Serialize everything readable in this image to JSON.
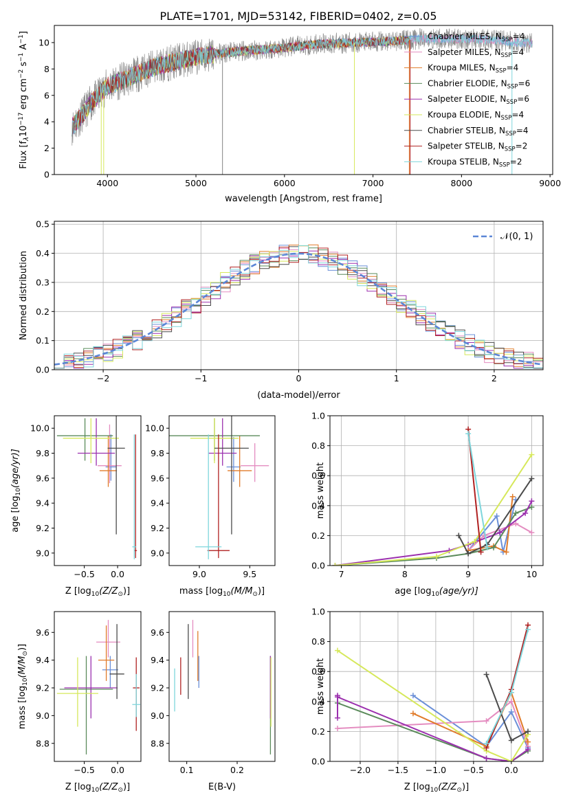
{
  "figure": {
    "title": "PLATE=1701, MJD=53142, FIBERID=0402, z=0.05"
  },
  "colors": {
    "chabrier_miles": "#6a8fd8",
    "salpeter_miles": "#e48cc0",
    "kroupa_miles": "#e07b2a",
    "chabrier_elodie": "#5a8a5a",
    "salpeter_elodie": "#9b2fae",
    "kroupa_elodie": "#d6e85a",
    "chabrier_stelib": "#4a4a4a",
    "salpeter_stelib": "#b02020",
    "kroupa_stelib": "#7ed6dc",
    "data": "#808080",
    "normal": "#5b86d6"
  },
  "chart_data": [
    {
      "id": "spectrum",
      "type": "line",
      "xlabel": "wavelength [Angstrom, rest frame]",
      "ylabel_prefix": "Flux [f",
      "ylabel_mid": "10",
      "ylabel_exp1": "−17",
      "ylabel_mid2": " erg cm",
      "ylabel_exp2": "−2",
      "ylabel_mid3": " s",
      "ylabel_exp3": "−1",
      "ylabel_mid4": " A",
      "ylabel_exp4": "−1",
      "ylabel_suffix": "]",
      "xlim": [
        3400,
        9030
      ],
      "ylim": [
        0,
        11.3
      ],
      "xticks": [
        4000,
        5000,
        6000,
        7000,
        8000,
        9000
      ],
      "yticks": [
        0,
        2,
        4,
        6,
        8,
        10
      ],
      "continuum_x": [
        3600,
        3700,
        3800,
        3900,
        4000,
        4200,
        4400,
        4600,
        4800,
        5000,
        5300,
        5600,
        6000,
        6400,
        6800,
        7200,
        7600,
        8000,
        8400,
        8800
      ],
      "continuum_y": [
        3.6,
        4.4,
        5.3,
        6.0,
        6.7,
        7.2,
        7.8,
        8.3,
        8.6,
        8.9,
        9.2,
        9.4,
        9.6,
        9.9,
        10.0,
        10.1,
        10.3,
        10.3,
        10.2,
        9.9
      ],
      "legend": [
        {
          "label": "Chabrier MILES, N",
          "sub": "SSP",
          "tail": "=4",
          "color_key": "chabrier_miles"
        },
        {
          "label": "Salpeter MILES, N",
          "sub": "SSP",
          "tail": "=4",
          "color_key": "salpeter_miles"
        },
        {
          "label": "Kroupa MILES, N",
          "sub": "SSP",
          "tail": "=4",
          "color_key": "kroupa_miles"
        },
        {
          "label": "Chabrier ELODIE, N",
          "sub": "SSP",
          "tail": "=6",
          "color_key": "chabrier_elodie"
        },
        {
          "label": "Salpeter ELODIE, N",
          "sub": "SSP",
          "tail": "=6",
          "color_key": "salpeter_elodie"
        },
        {
          "label": "Kroupa ELODIE, N",
          "sub": "SSP",
          "tail": "=4",
          "color_key": "kroupa_elodie"
        },
        {
          "label": "Chabrier STELIB, N",
          "sub": "SSP",
          "tail": "=4",
          "color_key": "chabrier_stelib"
        },
        {
          "label": "Salpeter STELIB, N",
          "sub": "SSP",
          "tail": "=2",
          "color_key": "salpeter_stelib"
        },
        {
          "label": "Kroupa STELIB, N",
          "sub": "SSP",
          "tail": "=2",
          "color_key": "kroupa_stelib"
        }
      ],
      "legend_position": "upper right"
    },
    {
      "id": "residuals",
      "type": "histogram",
      "xlabel": "(data-model)/error",
      "ylabel": "Normed distribution",
      "xlim": [
        -2.5,
        2.5
      ],
      "ylim": [
        0,
        0.51
      ],
      "xticks": [
        -2,
        -1,
        0,
        1,
        2
      ],
      "xtick_labels": [
        "−2",
        "−1",
        "0",
        "1",
        "2"
      ],
      "yticks": [
        0.0,
        0.1,
        0.2,
        0.3,
        0.4,
        0.5
      ],
      "ytick_labels": [
        "0.0",
        "0.1",
        "0.2",
        "0.3",
        "0.4",
        "0.5"
      ],
      "grid": true,
      "bin_width": 0.1,
      "legend": [
        {
          "label": "𝒩(0, 1)",
          "style": "dashed",
          "color_key": "normal"
        }
      ],
      "legend_position": "upper right"
    },
    {
      "id": "age_vs_z",
      "type": "errorbar",
      "xlabel": "Z [log",
      "xlabel_sub": "10",
      "xlabel_tail": "(Z/Z",
      "xlabel_sun": "⊙",
      "xlabel_end": ")]",
      "ylabel": "age  [log",
      "ylabel_sub": "10",
      "ylabel_tail": "(age/yr)]",
      "xlim": [
        -0.95,
        0.35
      ],
      "ylim": [
        8.9,
        10.1
      ],
      "xticks": [
        -0.5,
        0.0
      ],
      "xtick_labels": [
        "−0.5",
        "0.0"
      ],
      "yticks": [
        9.0,
        9.2,
        9.4,
        9.6,
        9.8,
        10.0
      ],
      "ytick_labels": [
        "9.0",
        "9.2",
        "9.4",
        "9.6",
        "9.8",
        "10.0"
      ],
      "points": [
        {
          "x": -0.1,
          "xerr": 0.08,
          "y": 9.69,
          "yerr_lo": 0.11,
          "yerr_hi": 0.26,
          "color_key": "chabrier_miles"
        },
        {
          "x": -0.12,
          "xerr": 0.18,
          "y": 9.7,
          "yerr_lo": 0.14,
          "yerr_hi": 0.33,
          "color_key": "salpeter_miles"
        },
        {
          "x": -0.14,
          "xerr": 0.13,
          "y": 9.66,
          "yerr_lo": 0.13,
          "yerr_hi": 0.28,
          "color_key": "kroupa_miles"
        },
        {
          "x": -0.49,
          "xerr": 0.42,
          "y": 9.94,
          "yerr_lo": 0.2,
          "yerr_hi": 0.14,
          "color_key": "chabrier_elodie"
        },
        {
          "x": -0.32,
          "xerr": 0.28,
          "y": 9.8,
          "yerr_lo": 0.1,
          "yerr_hi": 0.28,
          "color_key": "salpeter_elodie"
        },
        {
          "x": -0.4,
          "xerr": 0.42,
          "y": 9.92,
          "yerr_lo": 0.2,
          "yerr_hi": 0.16,
          "color_key": "kroupa_elodie"
        },
        {
          "x": -0.02,
          "xerr": 0.13,
          "y": 9.84,
          "yerr_lo": 0.69,
          "yerr_hi": 0.26,
          "color_key": "chabrier_stelib"
        },
        {
          "x": 0.27,
          "xerr": 0.02,
          "y": 9.02,
          "yerr_lo": 0.06,
          "yerr_hi": 0.93,
          "color_key": "salpeter_stelib"
        },
        {
          "x": 0.25,
          "xerr": 0.03,
          "y": 9.05,
          "yerr_lo": 0.1,
          "yerr_hi": 0.9,
          "color_key": "kroupa_stelib"
        }
      ]
    },
    {
      "id": "age_vs_mass",
      "type": "errorbar",
      "xlabel": "mass [log",
      "xlabel_sub": "10",
      "xlabel_tail": "(M/M",
      "xlabel_sun": "⊙",
      "xlabel_end": ")]",
      "xlim": [
        8.7,
        9.75
      ],
      "ylim": [
        8.9,
        10.1
      ],
      "xticks": [
        9.0,
        9.5
      ],
      "xtick_labels": [
        "9.0",
        "9.5"
      ],
      "yticks": [
        9.0,
        9.2,
        9.4,
        9.6,
        9.8,
        10.0
      ],
      "ytick_labels": [
        "9.0",
        "9.2",
        "9.4",
        "9.6",
        "9.8",
        "10.0"
      ],
      "points": [
        {
          "x": 9.34,
          "xerr": 0.07,
          "y": 9.69,
          "yerr_lo": 0.12,
          "yerr_hi": 0.24,
          "color_key": "chabrier_miles"
        },
        {
          "x": 9.55,
          "xerr": 0.14,
          "y": 9.7,
          "yerr_lo": 0.13,
          "yerr_hi": 0.18,
          "color_key": "salpeter_miles"
        },
        {
          "x": 9.4,
          "xerr": 0.12,
          "y": 9.66,
          "yerr_lo": 0.13,
          "yerr_hi": 0.28,
          "color_key": "kroupa_miles"
        },
        {
          "x": 9.15,
          "xerr": 0.45,
          "y": 9.94,
          "yerr_lo": 0.2,
          "yerr_hi": 0.14,
          "color_key": "chabrier_elodie"
        },
        {
          "x": 9.23,
          "xerr": 0.14,
          "y": 9.8,
          "yerr_lo": 0.1,
          "yerr_hi": 0.28,
          "color_key": "salpeter_elodie"
        },
        {
          "x": 9.15,
          "xerr": 0.24,
          "y": 9.92,
          "yerr_lo": 0.2,
          "yerr_hi": 0.16,
          "color_key": "kroupa_elodie"
        },
        {
          "x": 9.32,
          "xerr": 0.17,
          "y": 9.84,
          "yerr_lo": 0.69,
          "yerr_hi": 0.26,
          "color_key": "chabrier_stelib"
        },
        {
          "x": 9.19,
          "xerr": 0.11,
          "y": 9.02,
          "yerr_lo": 0.06,
          "yerr_hi": 0.93,
          "color_key": "salpeter_stelib"
        },
        {
          "x": 9.09,
          "xerr": 0.13,
          "y": 9.05,
          "yerr_lo": 0.1,
          "yerr_hi": 0.9,
          "color_key": "kroupa_stelib"
        }
      ]
    },
    {
      "id": "weight_vs_age",
      "type": "line",
      "xlabel": "age  [log",
      "xlabel_sub": "10",
      "xlabel_tail": "(age/yr)]",
      "ylabel": "mass weight",
      "xlim": [
        6.82,
        10.18
      ],
      "ylim": [
        0,
        1.0
      ],
      "xticks": [
        7,
        8,
        9,
        10
      ],
      "xtick_labels": [
        "7",
        "8",
        "9",
        "10"
      ],
      "yticks": [
        0.0,
        0.2,
        0.4,
        0.6,
        0.8,
        1.0
      ],
      "ytick_labels": [
        "0.0",
        "0.2",
        "0.4",
        "0.6",
        "0.8",
        "1.0"
      ],
      "grid": true,
      "series": [
        {
          "color_key": "chabrier_miles",
          "x": [
            9.0,
            9.45,
            9.55,
            9.75
          ],
          "y": [
            0.1,
            0.33,
            0.09,
            0.44
          ]
        },
        {
          "color_key": "salpeter_miles",
          "x": [
            9.0,
            9.25,
            9.75,
            10.0
          ],
          "y": [
            0.1,
            0.2,
            0.28,
            0.22
          ]
        },
        {
          "color_key": "kroupa_miles",
          "x": [
            9.0,
            9.4,
            9.6,
            9.7
          ],
          "y": [
            0.1,
            0.13,
            0.09,
            0.46
          ]
        },
        {
          "color_key": "chabrier_elodie",
          "x": [
            6.9,
            8.5,
            9.0,
            9.4,
            9.75,
            10.0
          ],
          "y": [
            0.0,
            0.05,
            0.08,
            0.12,
            0.35,
            0.39
          ]
        },
        {
          "color_key": "salpeter_elodie",
          "x": [
            6.9,
            8.7,
            9.0,
            9.5,
            9.9,
            10.0
          ],
          "y": [
            0.0,
            0.1,
            0.14,
            0.22,
            0.35,
            0.43
          ]
        },
        {
          "color_key": "kroupa_elodie",
          "x": [
            6.9,
            8.5,
            9.1,
            10.0
          ],
          "y": [
            0.0,
            0.06,
            0.16,
            0.74
          ]
        },
        {
          "color_key": "chabrier_stelib",
          "x": [
            8.85,
            9.0,
            9.3,
            10.0
          ],
          "y": [
            0.2,
            0.08,
            0.14,
            0.58
          ]
        },
        {
          "color_key": "salpeter_stelib",
          "x": [
            9.0,
            9.2
          ],
          "y": [
            0.91,
            0.09
          ]
        },
        {
          "color_key": "kroupa_stelib",
          "x": [
            9.0,
            9.3
          ],
          "y": [
            0.88,
            0.12
          ]
        }
      ]
    },
    {
      "id": "mass_vs_z",
      "type": "errorbar",
      "xlabel": "Z [log",
      "xlabel_sub": "10",
      "xlabel_tail": "(Z/Z",
      "xlabel_sun": "⊙",
      "xlabel_end": ")]",
      "ylabel": "mass [log",
      "ylabel_sub": "10",
      "ylabel_tail": "(M/M",
      "ylabel_sun": "⊙",
      "ylabel_end": ")]",
      "xlim": [
        -0.95,
        0.35
      ],
      "ylim": [
        8.67,
        9.75
      ],
      "xticks": [
        -0.5,
        0.0
      ],
      "xtick_labels": [
        "−0.5",
        "0.0"
      ],
      "yticks": [
        8.8,
        9.0,
        9.2,
        9.4,
        9.6
      ],
      "ytick_labels": [
        "8.8",
        "9.0",
        "9.2",
        "9.4",
        "9.6"
      ],
      "points": [
        {
          "x": -0.11,
          "xerr": 0.12,
          "y": 9.33,
          "yerr_lo": 0.13,
          "yerr_hi": 0.1,
          "color_key": "chabrier_miles"
        },
        {
          "x": -0.14,
          "xerr": 0.18,
          "y": 9.53,
          "yerr_lo": 0.11,
          "yerr_hi": 0.16,
          "color_key": "salpeter_miles"
        },
        {
          "x": -0.17,
          "xerr": 0.12,
          "y": 9.4,
          "yerr_lo": 0.15,
          "yerr_hi": 0.25,
          "color_key": "kroupa_miles"
        },
        {
          "x": -0.47,
          "xerr": 0.4,
          "y": 9.19,
          "yerr_lo": 0.47,
          "yerr_hi": 0.24,
          "color_key": "chabrier_elodie"
        },
        {
          "x": -0.4,
          "xerr": 0.4,
          "y": 9.2,
          "yerr_lo": 0.22,
          "yerr_hi": 0.23,
          "color_key": "salpeter_elodie"
        },
        {
          "x": -0.6,
          "xerr": 0.31,
          "y": 9.16,
          "yerr_lo": 0.24,
          "yerr_hi": 0.26,
          "color_key": "kroupa_elodie"
        },
        {
          "x": -0.01,
          "xerr": 0.11,
          "y": 9.3,
          "yerr_lo": 0.18,
          "yerr_hi": 0.36,
          "color_key": "chabrier_stelib"
        },
        {
          "x": 0.28,
          "xerr": 0.05,
          "y": 9.2,
          "yerr_lo": 0.31,
          "yerr_hi": 0.22,
          "color_key": "salpeter_stelib"
        },
        {
          "x": 0.28,
          "xerr": 0.06,
          "y": 9.08,
          "yerr_lo": 0.09,
          "yerr_hi": 0.22,
          "color_key": "kroupa_stelib"
        }
      ]
    },
    {
      "id": "mass_vs_ebv",
      "type": "errorbar",
      "xlabel": "E(B-V)",
      "xlim": [
        0.065,
        0.275
      ],
      "ylim": [
        8.67,
        9.75
      ],
      "xticks": [
        0.1,
        0.2
      ],
      "xtick_labels": [
        "0.1",
        "0.2"
      ],
      "yticks": [
        8.8,
        9.0,
        9.2,
        9.4,
        9.6
      ],
      "ytick_labels": [
        "8.8",
        "9.0",
        "9.2",
        "9.4",
        "9.6"
      ],
      "points": [
        {
          "x": 0.124,
          "y": 9.33,
          "yerr_lo": 0.13,
          "yerr_hi": 0.1,
          "color_key": "chabrier_miles"
        },
        {
          "x": 0.112,
          "y": 9.53,
          "yerr_lo": 0.11,
          "yerr_hi": 0.16,
          "color_key": "salpeter_miles"
        },
        {
          "x": 0.122,
          "y": 9.4,
          "yerr_lo": 0.15,
          "yerr_hi": 0.21,
          "color_key": "kroupa_miles"
        },
        {
          "x": 0.266,
          "y": 9.19,
          "yerr_lo": 0.47,
          "yerr_hi": 0.24,
          "color_key": "chabrier_elodie"
        },
        {
          "x": 0.266,
          "y": 9.2,
          "yerr_lo": 0.22,
          "yerr_hi": 0.23,
          "color_key": "salpeter_elodie"
        },
        {
          "x": 0.267,
          "y": 9.16,
          "yerr_lo": 0.24,
          "yerr_hi": 0.26,
          "color_key": "kroupa_elodie"
        },
        {
          "x": 0.103,
          "y": 9.3,
          "yerr_lo": 0.18,
          "yerr_hi": 0.36,
          "color_key": "chabrier_stelib"
        },
        {
          "x": 0.088,
          "y": 9.2,
          "yerr_lo": 0.05,
          "yerr_hi": 0.22,
          "color_key": "salpeter_stelib"
        },
        {
          "x": 0.076,
          "y": 9.08,
          "yerr_lo": 0.05,
          "yerr_hi": 0.26,
          "color_key": "kroupa_stelib"
        }
      ]
    },
    {
      "id": "weight_vs_z",
      "type": "line",
      "xlabel": "Z [log",
      "xlabel_sub": "10",
      "xlabel_tail": "(Z/Z",
      "xlabel_sun": "⊙",
      "xlabel_end": ")]",
      "ylabel": "mass weight",
      "xlim": [
        -2.4,
        0.42
      ],
      "ylim": [
        0,
        1.0
      ],
      "xticks": [
        -2.0,
        -1.5,
        -1.0,
        -0.5,
        0.0
      ],
      "xtick_labels": [
        "−2.0",
        "−1.5",
        "−1.0",
        "−0.5",
        "0.0"
      ],
      "yticks": [
        0.0,
        0.2,
        0.4,
        0.6,
        0.8,
        1.0
      ],
      "ytick_labels": [
        "0.0",
        "0.2",
        "0.4",
        "0.6",
        "0.8",
        "1.0"
      ],
      "grid": true,
      "series": [
        {
          "color_key": "chabrier_miles",
          "x": [
            -1.3,
            -0.33,
            0.0,
            0.22
          ],
          "y": [
            0.44,
            0.1,
            0.33,
            0.09
          ]
        },
        {
          "color_key": "salpeter_miles",
          "x": [
            -2.3,
            -0.33,
            0.0,
            0.22
          ],
          "y": [
            0.22,
            0.27,
            0.4,
            0.1
          ]
        },
        {
          "color_key": "kroupa_miles",
          "x": [
            -1.3,
            -0.33,
            0.0,
            0.22
          ],
          "y": [
            0.32,
            0.1,
            0.46,
            0.13
          ]
        },
        {
          "color_key": "chabrier_elodie",
          "x": [
            -2.3,
            -0.33,
            0.0,
            0.22
          ],
          "y": [
            0.39,
            0.02,
            0.0,
            0.07
          ]
        },
        {
          "color_key": "salpeter_elodie",
          "x": [
            -2.3,
            -2.3,
            -2.3,
            -0.33,
            0.0,
            0.22
          ],
          "y": [
            0.29,
            0.44,
            0.43,
            0.02,
            0.0,
            0.08
          ]
        },
        {
          "color_key": "kroupa_elodie",
          "x": [
            -2.3,
            -0.33,
            0.0,
            0.22
          ],
          "y": [
            0.74,
            0.07,
            0.0,
            0.18
          ]
        },
        {
          "color_key": "chabrier_stelib",
          "x": [
            -0.33,
            0.0,
            0.22
          ],
          "y": [
            0.58,
            0.14,
            0.2
          ]
        },
        {
          "color_key": "salpeter_stelib",
          "x": [
            -0.33,
            0.0,
            0.22
          ],
          "y": [
            0.09,
            0.48,
            0.91
          ]
        },
        {
          "color_key": "kroupa_stelib",
          "x": [
            -0.33,
            0.0,
            0.22
          ],
          "y": [
            0.12,
            0.46,
            0.88
          ]
        }
      ]
    }
  ]
}
